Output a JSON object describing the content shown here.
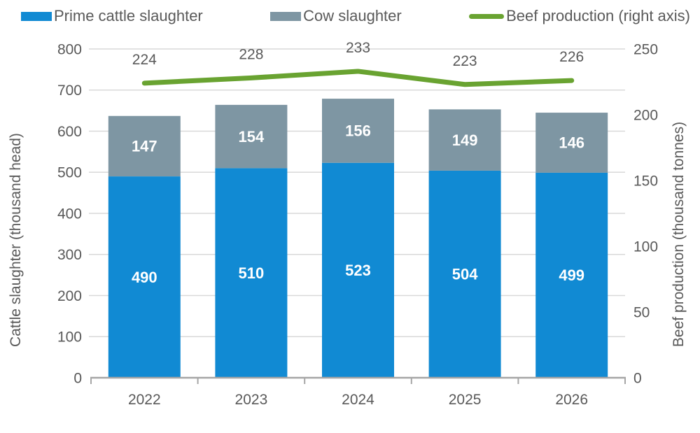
{
  "legend": [
    {
      "label": "Prime cattle slaughter",
      "swatch": "box",
      "color": "#118ad3"
    },
    {
      "label": "Cow slaughter",
      "swatch": "box",
      "color": "#7e96a3"
    },
    {
      "label": "Beef production (right axis)",
      "swatch": "line",
      "color": "#69a331"
    }
  ],
  "chart_data": {
    "type": "bar",
    "subtype": "stacked-bar-with-line",
    "categories": [
      "2022",
      "2023",
      "2024",
      "2025",
      "2026"
    ],
    "series": [
      {
        "name": "Prime cattle slaughter",
        "type": "bar",
        "axis": "left",
        "color": "#118ad3",
        "values": [
          490,
          510,
          523,
          504,
          499
        ],
        "label_color": "#ffffff"
      },
      {
        "name": "Cow slaughter",
        "type": "bar",
        "axis": "left",
        "color": "#7e96a3",
        "values": [
          147,
          154,
          156,
          149,
          146
        ],
        "label_color": "#ffffff"
      },
      {
        "name": "Beef production (right axis)",
        "type": "line",
        "axis": "right",
        "color": "#69a331",
        "values": [
          224,
          228,
          233,
          223,
          226
        ],
        "label_color": "#595959"
      }
    ],
    "left_axis": {
      "label": "Cattle slaughter (thousand head)",
      "min": 0,
      "max": 800,
      "step": 100,
      "ticks": [
        0,
        100,
        200,
        300,
        400,
        500,
        600,
        700,
        800
      ]
    },
    "right_axis": {
      "label": "Beef production (thousand tonnes)",
      "min": 0,
      "max": 250,
      "step": 50,
      "ticks": [
        0,
        50,
        100,
        150,
        200,
        250
      ]
    },
    "stacked": true,
    "grid": true,
    "legend_position": "top",
    "styles": {
      "grid_color": "#d9d9d9",
      "axis_line_color": "#a6a6a6",
      "tick_label_color": "#595959",
      "axis_title_color": "#595959"
    }
  }
}
